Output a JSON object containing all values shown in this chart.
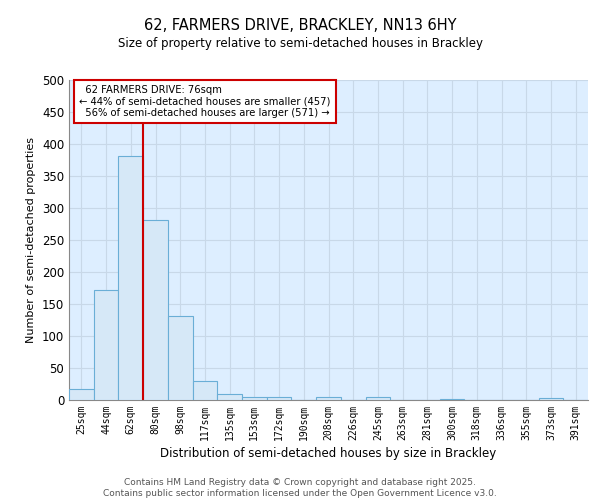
{
  "title1": "62, FARMERS DRIVE, BRACKLEY, NN13 6HY",
  "title2": "Size of property relative to semi-detached houses in Brackley",
  "xlabel": "Distribution of semi-detached houses by size in Brackley",
  "ylabel": "Number of semi-detached properties",
  "bin_labels": [
    "25sqm",
    "44sqm",
    "62sqm",
    "80sqm",
    "98sqm",
    "117sqm",
    "135sqm",
    "153sqm",
    "172sqm",
    "190sqm",
    "208sqm",
    "226sqm",
    "245sqm",
    "263sqm",
    "281sqm",
    "300sqm",
    "318sqm",
    "336sqm",
    "355sqm",
    "373sqm",
    "391sqm"
  ],
  "bin_values": [
    17,
    172,
    381,
    281,
    132,
    30,
    9,
    5,
    4,
    0,
    5,
    0,
    5,
    0,
    0,
    2,
    0,
    0,
    0,
    3,
    0
  ],
  "bar_color": "#d6e8f7",
  "bar_edge_color": "#6aaed6",
  "vline_color": "#cc0000",
  "annotation_box_color": "#cc0000",
  "property_label": "62 FARMERS DRIVE: 76sqm",
  "pct_smaller": 44,
  "pct_smaller_count": 457,
  "pct_larger": 56,
  "pct_larger_count": 571,
  "ylim": [
    0,
    500
  ],
  "yticks": [
    0,
    50,
    100,
    150,
    200,
    250,
    300,
    350,
    400,
    450,
    500
  ],
  "fig_background": "#ffffff",
  "plot_background": "#ddeeff",
  "grid_color": "#c8d8e8",
  "footer": "Contains HM Land Registry data © Crown copyright and database right 2025.\nContains public sector information licensed under the Open Government Licence v3.0."
}
